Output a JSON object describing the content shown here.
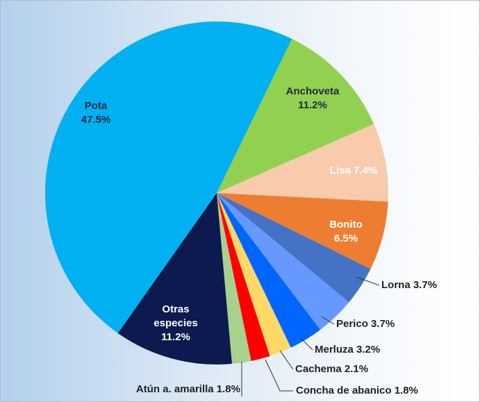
{
  "chart_data": {
    "type": "pie",
    "categories": [
      "Anchoveta",
      "Lisa",
      "Bonito",
      "Lorna",
      "Perico",
      "Merluza",
      "Cachema",
      "Concha de abanico",
      "Atún a. amarilla",
      "Otras especies",
      "Pota"
    ],
    "values": [
      11.2,
      7.4,
      6.5,
      3.7,
      3.7,
      3.2,
      2.1,
      1.8,
      1.8,
      11.2,
      47.5
    ],
    "value_labels": [
      "11.2%",
      "7.4%",
      "6.5%",
      "3.7%",
      "3.7%",
      "3.2%",
      "2.1%",
      "1.8%",
      "1.8%",
      "11.2%",
      "47.5%"
    ],
    "colors": [
      "#92d050",
      "#f8cbad",
      "#ed7d31",
      "#4472c4",
      "#6699ff",
      "#0066ff",
      "#ffd966",
      "#ff0000",
      "#a9d18e",
      "#0c1a4f",
      "#00b0f0"
    ]
  }
}
